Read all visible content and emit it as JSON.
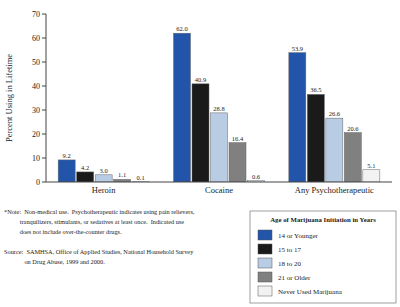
{
  "chart_data": {
    "type": "bar",
    "y_label": "Percent Using in Lifetime",
    "categories": [
      "Heroin",
      "Cocaine",
      "Any Psychotherapeutic"
    ],
    "series": [
      {
        "name": "14 or Younger",
        "color": "#2255aa",
        "values": [
          9.2,
          62.0,
          53.9
        ],
        "value_labels": [
          "9.2",
          "62.0",
          "53.9"
        ]
      },
      {
        "name": "15 to 17",
        "color": "#1a1a1a",
        "values": [
          4.2,
          40.9,
          36.5
        ],
        "value_labels": [
          "4.2",
          "40.9",
          "36.5"
        ]
      },
      {
        "name": "18 to 20",
        "color": "#b8cce4",
        "values": [
          3.0,
          28.8,
          26.6
        ],
        "value_labels": [
          "3.0",
          "28.8",
          "26.6"
        ]
      },
      {
        "name": "21 or Older",
        "color": "#808080",
        "values": [
          1.1,
          16.4,
          20.6
        ],
        "value_labels": [
          "1.1",
          "16.4",
          "20.6"
        ]
      },
      {
        "name": "Never Used Marijuana",
        "color": "#f2f2f2",
        "values": [
          0.1,
          0.6,
          5.1
        ],
        "value_labels": [
          "0.1",
          "0.6",
          "5.1"
        ]
      }
    ],
    "ylim": [
      0,
      70
    ],
    "yticks": [
      0,
      10,
      20,
      30,
      40,
      50,
      60,
      70
    ],
    "data_labels": true,
    "legend": "lower right",
    "legend_title": "Age of Marijuana Initiation in Years",
    "annotations": [
      "*Note:  Non-medical use.  Psychotherapeutic indicates using pain relievers,",
      "          tranquilizers, stimulants, or sedatives at least once.  Indicated use",
      "          does not include over-the-counter drugs.",
      "Source:  SAMHSA, Office of Applied Studies, National Household Survey",
      "             on Drug Abuse, 1999 and 2000."
    ]
  }
}
